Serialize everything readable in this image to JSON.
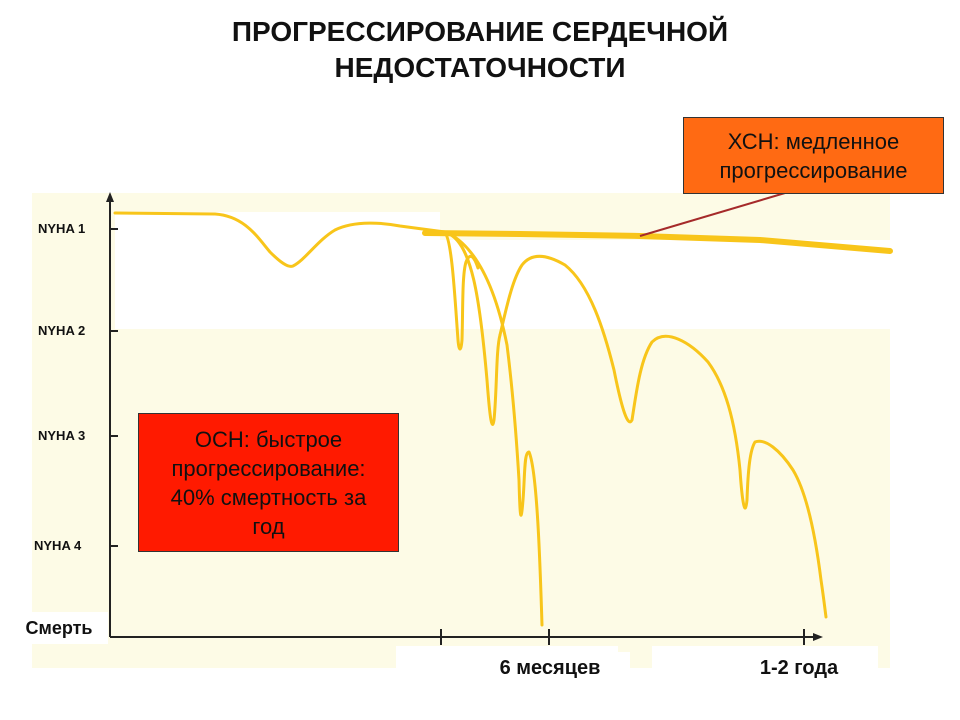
{
  "title": {
    "line1": "ПРОГРЕССИРОВАНИЕ СЕРДЕЧНОЙ",
    "line2": "НЕДОСТАТОЧНОСТИ"
  },
  "chs_box": {
    "line1": "ХСН: медленное",
    "line2": "прогрессирование"
  },
  "osn_box": {
    "line1": "ОСН: быстрое",
    "line2": "прогрессирование:",
    "line3": "40% смертность за",
    "line4": "год"
  },
  "y_axis": {
    "levels": [
      "NYHA 1",
      "NYHA 2",
      "NYHA 3",
      "NYHA 4"
    ],
    "death_label": "Смерть"
  },
  "x_axis": {
    "label_6m": "6 месяцев",
    "label_1_2y": "1-2 года"
  },
  "colors": {
    "curve": "#f8c51a",
    "chs_box": "#ff6a13",
    "osn_box": "#ff1a00",
    "plot_bg": "#fdfbe6"
  }
}
